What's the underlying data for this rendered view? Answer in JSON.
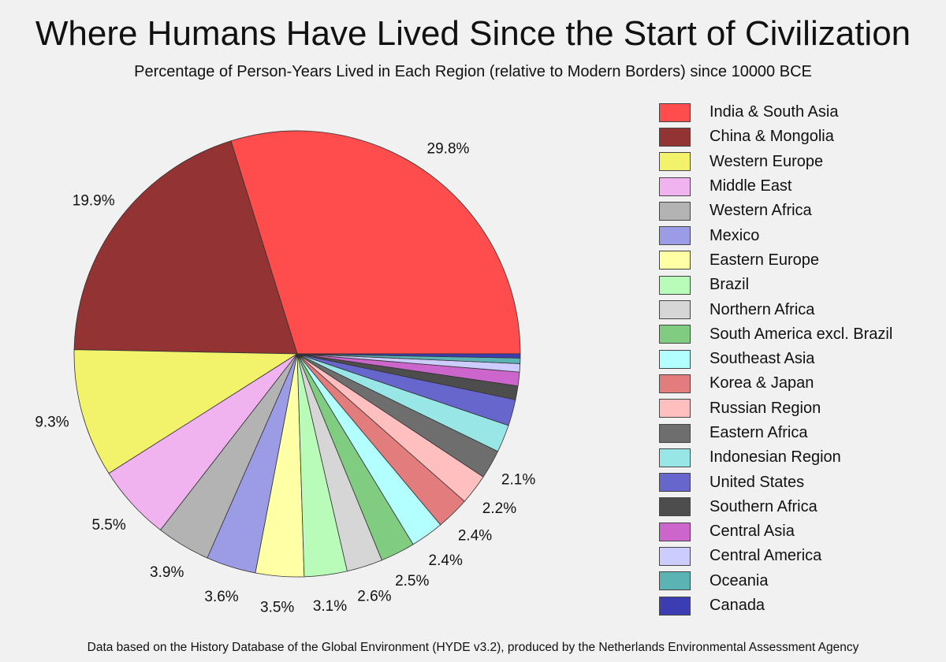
{
  "title": "Where Humans Have Lived Since the Start of Civilization",
  "subtitle": "Percentage of Person-Years Lived in Each Region (relative to Modern Borders) since 10000 BCE",
  "source": "Data based on the History Database of the Global Environment (HYDE v3.2), produced by the Netherlands Environmental Assessment Agency",
  "chart_data": {
    "type": "pie",
    "title": "Where Humans Have Lived Since the Start of Civilization",
    "subtitle": "Percentage of Person-Years Lived in Each Region (relative to Modern Borders) since 10000 BCE",
    "legend_position": "right",
    "start": "east",
    "direction": "counterclockwise",
    "slices": [
      {
        "label": "India & South Asia",
        "value": 29.8,
        "color": "#ff4d4d",
        "shown_label": "29.8%"
      },
      {
        "label": "China & Mongolia",
        "value": 19.9,
        "color": "#933333",
        "shown_label": "19.9%"
      },
      {
        "label": "Western Europe",
        "value": 9.3,
        "color": "#f2f26b",
        "shown_label": "9.3%"
      },
      {
        "label": "Middle East",
        "value": 5.5,
        "color": "#f0b3f0",
        "shown_label": "5.5%"
      },
      {
        "label": "Western Africa",
        "value": 3.9,
        "color": "#b3b3b3",
        "shown_label": "3.9%"
      },
      {
        "label": "Mexico",
        "value": 3.6,
        "color": "#9b9be6",
        "shown_label": "3.6%"
      },
      {
        "label": "Eastern Europe",
        "value": 3.5,
        "color": "#ffffa6",
        "shown_label": "3.5%"
      },
      {
        "label": "Brazil",
        "value": 3.1,
        "color": "#b9fbb9",
        "shown_label": "3.1%"
      },
      {
        "label": "Northern Africa",
        "value": 2.6,
        "color": "#d6d6d6",
        "shown_label": "2.6%"
      },
      {
        "label": "South America excl. Brazil",
        "value": 2.5,
        "color": "#80cc80",
        "shown_label": "2.5%"
      },
      {
        "label": "Southeast Asia",
        "value": 2.4,
        "color": "#b3ffff",
        "shown_label": "2.4%"
      },
      {
        "label": "Korea & Japan",
        "value": 2.4,
        "color": "#e37d7d",
        "shown_label": "2.4%"
      },
      {
        "label": "Russian Region",
        "value": 2.2,
        "color": "#ffbfbf",
        "shown_label": "2.2%"
      },
      {
        "label": "Eastern Africa",
        "value": 2.1,
        "color": "#6e6e6e",
        "shown_label": "2.1%"
      },
      {
        "label": "Indonesian Region",
        "value": 2.0,
        "color": "#99e6e6",
        "shown_label": ""
      },
      {
        "label": "United States",
        "value": 1.9,
        "color": "#6666cc",
        "shown_label": ""
      },
      {
        "label": "Southern Africa",
        "value": 1.0,
        "color": "#4d4d4d",
        "shown_label": ""
      },
      {
        "label": "Central Asia",
        "value": 1.0,
        "color": "#cc66cc",
        "shown_label": ""
      },
      {
        "label": "Central America",
        "value": 0.6,
        "color": "#ccccff",
        "shown_label": ""
      },
      {
        "label": "Oceania",
        "value": 0.4,
        "color": "#5cb3b3",
        "shown_label": ""
      },
      {
        "label": "Canada",
        "value": 0.3,
        "color": "#3d3db3",
        "shown_label": ""
      }
    ]
  }
}
